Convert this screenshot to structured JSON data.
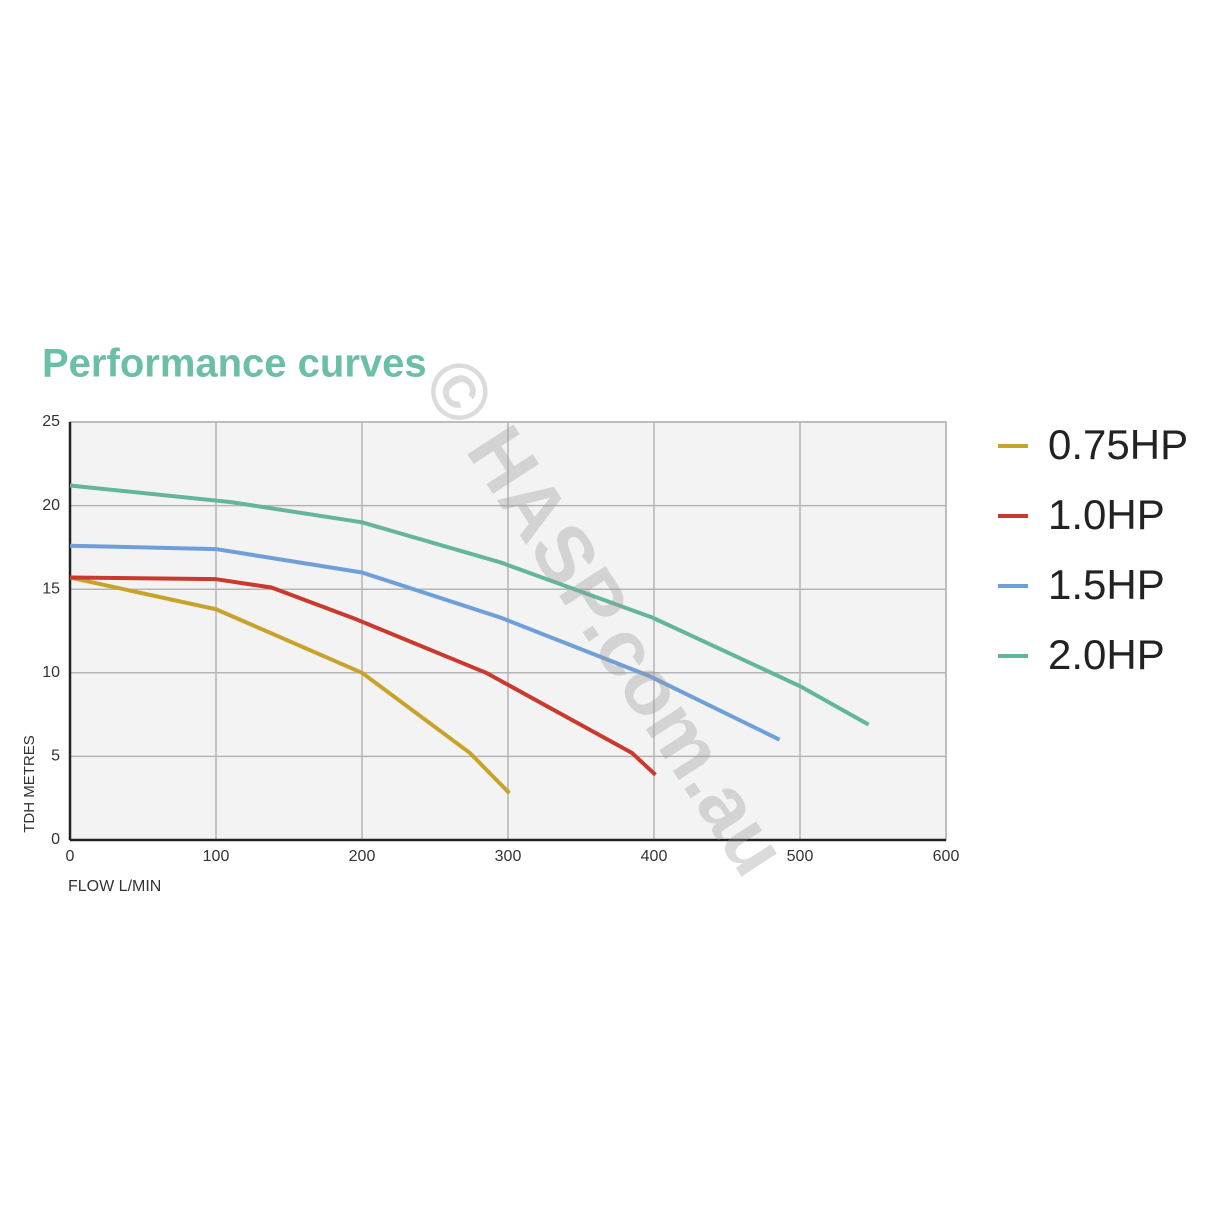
{
  "chart_data": {
    "type": "line",
    "title": "Performance curves",
    "x_label": "FLOW L/MIN",
    "y_label": "TDH METRES",
    "watermark": "© HASP.com.au",
    "xlim": [
      0,
      600
    ],
    "xticks": [
      0,
      100,
      200,
      300,
      400,
      500,
      600
    ],
    "ylim": [
      0,
      25
    ],
    "yticks": [
      0,
      5,
      10,
      15,
      20,
      25
    ],
    "grid": true,
    "legend": "right",
    "series": [
      {
        "name": "0.75HP",
        "color": "#c8a32c",
        "x": [
          0,
          100,
          200,
          274,
          301
        ],
        "values": [
          15.7,
          13.8,
          10.0,
          5.2,
          2.8
        ]
      },
      {
        "name": "1.0HP",
        "color": "#c9392e",
        "x": [
          0,
          100,
          138,
          196,
          285,
          385,
          401
        ],
        "values": [
          15.7,
          15.6,
          15.1,
          13.2,
          10.0,
          5.2,
          3.9
        ]
      },
      {
        "name": "1.5HP",
        "color": "#6f9fd9",
        "x": [
          0,
          100,
          200,
          295,
          397,
          486
        ],
        "values": [
          17.6,
          17.4,
          16.0,
          13.3,
          9.8,
          6.0
        ]
      },
      {
        "name": "2.0HP",
        "color": "#63b59e",
        "x": [
          0,
          111,
          200,
          295,
          399,
          500,
          547
        ],
        "values": [
          21.2,
          20.2,
          19.0,
          16.6,
          13.3,
          9.2,
          6.9
        ]
      }
    ]
  }
}
